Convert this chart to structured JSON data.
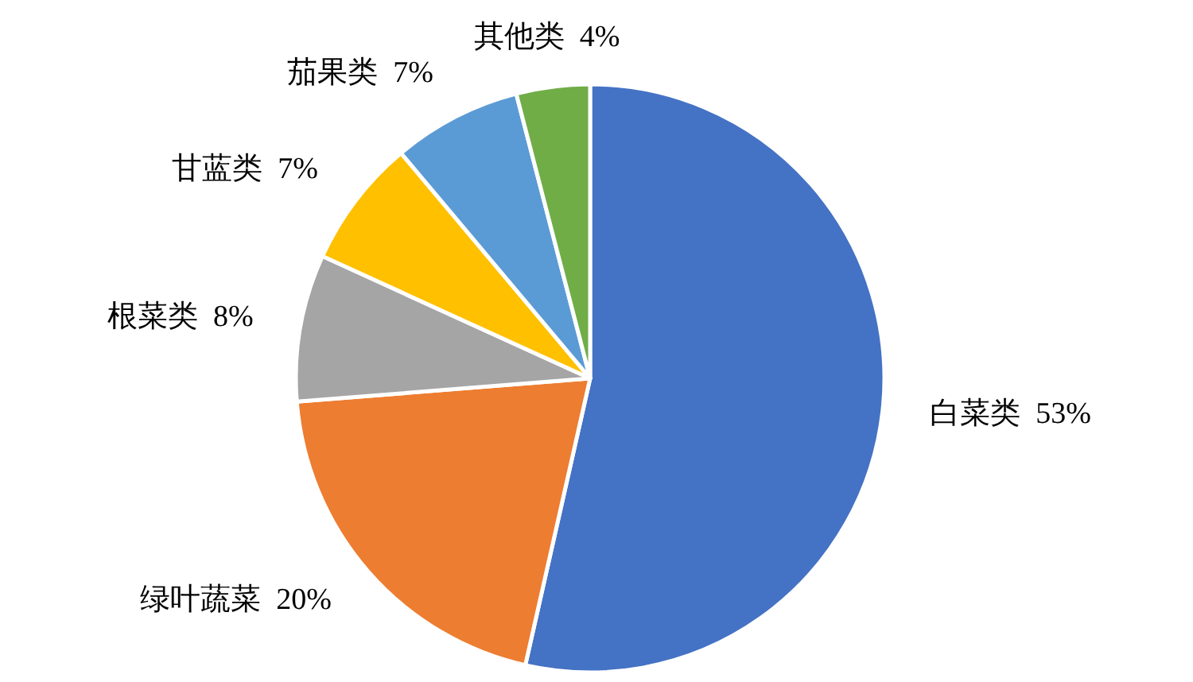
{
  "chart_data": {
    "type": "pie",
    "categories": [
      "白菜类",
      "绿叶蔬菜",
      "根菜类",
      "甘蓝类",
      "茄果类",
      "其他类"
    ],
    "values": [
      53,
      20,
      8,
      7,
      7,
      4
    ],
    "value_labels": [
      "53%",
      "20%",
      "8%",
      "7%",
      "7%",
      "4%"
    ],
    "colors": [
      "#4472c4",
      "#ed7d31",
      "#a5a5a5",
      "#ffc000",
      "#5b9bd5",
      "#70ad47"
    ]
  }
}
